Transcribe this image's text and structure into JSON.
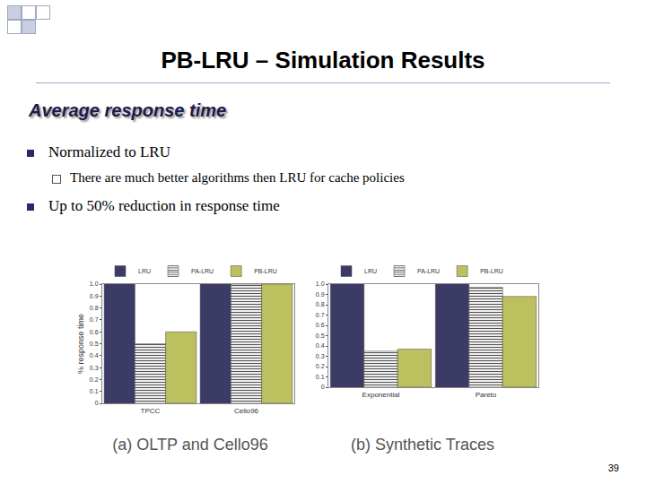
{
  "slide": {
    "title": "PB-LRU – Simulation Results",
    "subtitle": "Average response time",
    "bullets": [
      {
        "text": "Normalized to LRU",
        "sub": [
          "There are much better algorithms then LRU for cache policies"
        ]
      },
      {
        "text": "Up to 50% reduction in response time"
      }
    ],
    "page_number": "39"
  },
  "chart_data": [
    {
      "type": "bar",
      "title": "(a) OLTP and Cello96",
      "ylabel": "% response time",
      "categories": [
        "TPCC",
        "Cello96"
      ],
      "series": [
        {
          "name": "LRU",
          "color": "#3b3b66",
          "values": [
            1.0,
            1.0
          ]
        },
        {
          "name": "PA-LRU",
          "color": "#ffffff",
          "values": [
            0.5,
            1.0
          ]
        },
        {
          "name": "PB-LRU",
          "color": "#bcc05e",
          "values": [
            0.6,
            1.0
          ]
        }
      ],
      "ylim": [
        0,
        1
      ],
      "yticks": [
        0,
        0.1,
        0.2,
        0.3,
        0.4,
        0.5,
        0.6,
        0.7,
        0.8,
        0.9,
        {
          "value": 1,
          "label": "1.0"
        }
      ],
      "grid": false,
      "legend": "top"
    },
    {
      "type": "bar",
      "title": "(b) Synthetic Traces",
      "categories": [
        "Exponential",
        "Pareto"
      ],
      "series": [
        {
          "name": "LRU",
          "color": "#3b3b66",
          "values": [
            1.0,
            1.0
          ]
        },
        {
          "name": "PA-LRU",
          "color": "#ffffff",
          "values": [
            0.35,
            0.97
          ]
        },
        {
          "name": "PB-LRU",
          "color": "#bcc05e",
          "values": [
            0.37,
            0.88
          ]
        }
      ],
      "ylim": [
        0,
        1
      ],
      "yticks": [
        0,
        0.1,
        0.2,
        0.3,
        0.4,
        0.5,
        0.6,
        0.7,
        0.8,
        0.9,
        {
          "value": 1,
          "label": "1.0"
        }
      ],
      "grid": false,
      "legend": "top"
    }
  ]
}
